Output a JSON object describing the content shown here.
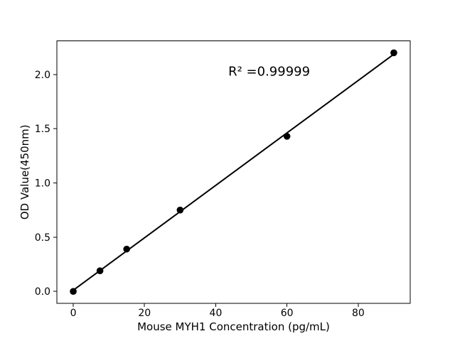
{
  "figure": {
    "background": "#ffffff"
  },
  "chart_data": {
    "type": "scatter",
    "title": "",
    "xlabel": "Mouse MYH1 Concentration (pg/mL)",
    "ylabel": "OD Value(450nm)",
    "annotation": "R² =0.99999",
    "annotation_xy": [
      55,
      2.03
    ],
    "x": [
      0,
      7.5,
      15,
      30,
      60,
      90
    ],
    "y": [
      0.0,
      0.19,
      0.39,
      0.75,
      1.43,
      2.2
    ],
    "has_fit_line": true,
    "xlim": [
      -4.6,
      94.6
    ],
    "ylim": [
      -0.11,
      2.31
    ],
    "xticks": [
      0,
      20,
      40,
      60,
      80
    ],
    "xtick_labels": [
      "0",
      "20",
      "40",
      "60",
      "80"
    ],
    "yticks": [
      0.0,
      0.5,
      1.0,
      1.5,
      2.0
    ],
    "ytick_labels": [
      "0.0",
      "0.5",
      "1.0",
      "1.5",
      "2.0"
    ],
    "grid": false,
    "legend_position": "none",
    "colors": {
      "line": "#000000",
      "marker": "#000000",
      "text": "#000000",
      "spine": "#000000",
      "background": "#ffffff"
    }
  }
}
